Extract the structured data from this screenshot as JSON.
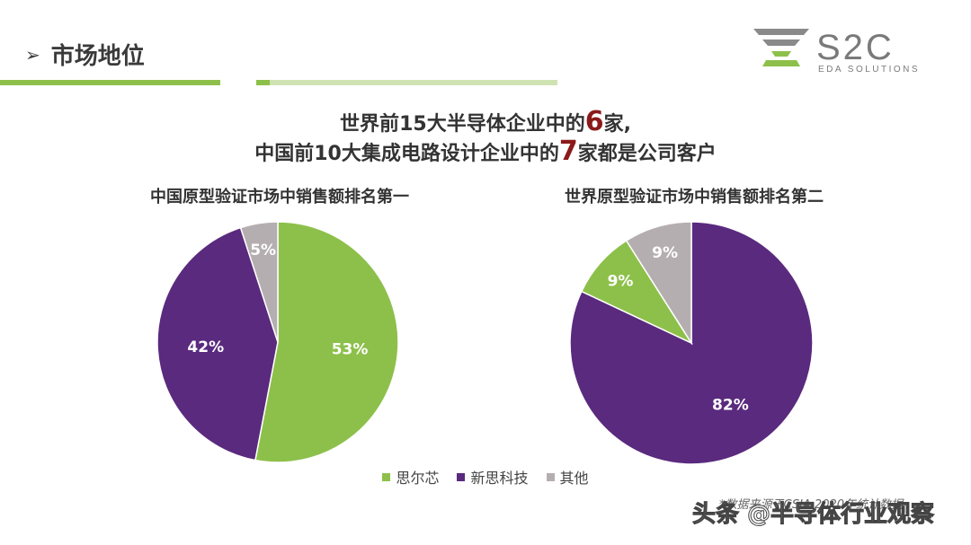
{
  "header": {
    "title": "市场地位",
    "arrow_glyph": "➢"
  },
  "logo": {
    "name": "S2C",
    "subtitle": "EDA SOLUTIONS"
  },
  "headline": {
    "line1": {
      "pre": "世界前",
      "num": "15",
      "mid": "大半导体企业中的",
      "big": "6",
      "post": "家,"
    },
    "line2": {
      "pre": "中国前",
      "num": "10",
      "mid": "大集成电路设计企业中的",
      "big": "7",
      "post": "家都是公司客户"
    }
  },
  "colors": {
    "green": "#8dc04a",
    "purple": "#5a2a7e",
    "gray": "#b5aeb0",
    "accent_red": "#8b1a1a"
  },
  "chart_data": [
    {
      "type": "pie",
      "title": "中国原型验证市场中销售额排名第一",
      "slices": [
        {
          "label": "思尔芯",
          "value": 53,
          "text": "53%",
          "color": "#8dc04a"
        },
        {
          "label": "新思科技",
          "value": 42,
          "text": "42%",
          "color": "#5a2a7e"
        },
        {
          "label": "其他",
          "value": 5,
          "text": "5%",
          "color": "#b5aeb0"
        }
      ]
    },
    {
      "type": "pie",
      "title": "世界原型验证市场中销售额排名第二",
      "slices": [
        {
          "label": "新思科技",
          "value": 82,
          "text": "82%",
          "color": "#5a2a7e"
        },
        {
          "label": "思尔芯",
          "value": 9,
          "text": "9%",
          "color": "#8dc04a"
        },
        {
          "label": "其他",
          "value": 9,
          "text": "9%",
          "color": "#b5aeb0"
        }
      ]
    }
  ],
  "legend": [
    {
      "label": "思尔芯",
      "color": "#8dc04a"
    },
    {
      "label": "新思科技",
      "color": "#5a2a7e"
    },
    {
      "label": "其他",
      "color": "#b5aeb0"
    }
  ],
  "footnote": "*数据来源于CSIA 2020年统计数据",
  "watermark": "头条 @半导体行业观察"
}
